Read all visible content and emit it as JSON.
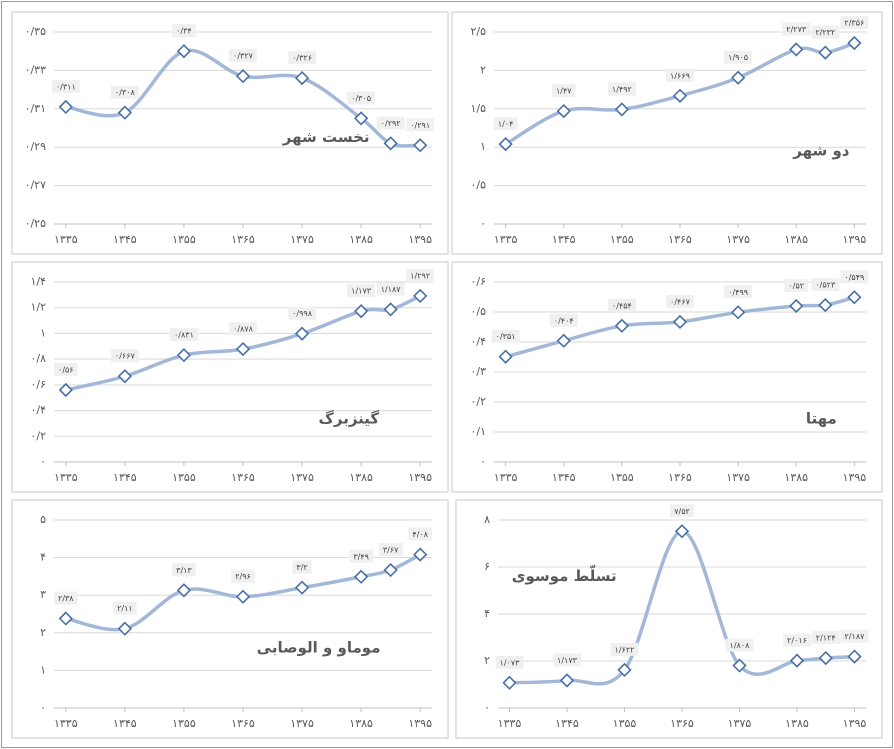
{
  "chart_data": [
    {
      "type": "line",
      "title": "نخست شهر",
      "x": [
        1335,
        1345,
        1355,
        1365,
        1375,
        1385,
        1390,
        1395
      ],
      "values": [
        0.311,
        0.308,
        0.34,
        0.327,
        0.326,
        0.305,
        0.292,
        0.291
      ],
      "value_labels": [
        "۰/۳۱۱",
        "۰/۳۰۸",
        "۰/۳۴",
        "۰/۳۲۷",
        "۰/۳۲۶",
        "۰/۳۰۵",
        "۰/۲۹۲",
        "۰/۲۹۱"
      ],
      "color": "#a3b8d9",
      "marker_color": "#4a6fa5",
      "xlim": [
        1333,
        1397
      ],
      "ylim": [
        0.25,
        0.35
      ],
      "xticks": [
        {
          "value": 1335,
          "label": "۱۳۳۵"
        },
        {
          "value": 1345,
          "label": "۱۳۴۵"
        },
        {
          "value": 1355,
          "label": "۱۳۵۵"
        },
        {
          "value": 1365,
          "label": "۱۳۶۵"
        },
        {
          "value": 1375,
          "label": "۱۳۷۵"
        },
        {
          "value": 1385,
          "label": "۱۳۸۵"
        },
        {
          "value": 1395,
          "label": "۱۳۹۵"
        }
      ],
      "yticks": [
        {
          "value": 0.25,
          "label": "۰/۲۵"
        },
        {
          "value": 0.27,
          "label": "۰/۲۷"
        },
        {
          "value": 0.29,
          "label": "۰/۲۹"
        },
        {
          "value": 0.31,
          "label": "۰/۳۱"
        },
        {
          "value": 0.33,
          "label": "۰/۳۳"
        },
        {
          "value": 0.35,
          "label": "۰/۳۵"
        }
      ],
      "grid": true
    },
    {
      "type": "line",
      "title": "دو شهر",
      "x": [
        1335,
        1345,
        1355,
        1365,
        1375,
        1385,
        1390,
        1395
      ],
      "values": [
        1.04,
        1.47,
        1.492,
        1.669,
        1.905,
        2.273,
        2.232,
        2.356
      ],
      "value_labels": [
        "۱/۰۴",
        "۱/۴۷",
        "۱/۴۹۲",
        "۱/۶۶۹",
        "۱/۹۰۵",
        "۲/۲۷۳",
        "۲/۲۳۲",
        "۲/۳۵۶"
      ],
      "color": "#a3b8d9",
      "marker_color": "#4a6fa5",
      "xlim": [
        1333,
        1397
      ],
      "ylim": [
        0,
        2.5
      ],
      "xticks": [
        {
          "value": 1335,
          "label": "۱۳۳۵"
        },
        {
          "value": 1345,
          "label": "۱۳۴۵"
        },
        {
          "value": 1355,
          "label": "۱۳۵۵"
        },
        {
          "value": 1365,
          "label": "۱۳۶۵"
        },
        {
          "value": 1375,
          "label": "۱۳۷۵"
        },
        {
          "value": 1385,
          "label": "۱۳۸۵"
        },
        {
          "value": 1395,
          "label": "۱۳۹۵"
        }
      ],
      "yticks": [
        {
          "value": 0,
          "label": "۰"
        },
        {
          "value": 0.5,
          "label": "۰/۵"
        },
        {
          "value": 1,
          "label": "۱"
        },
        {
          "value": 1.5,
          "label": "۱/۵"
        },
        {
          "value": 2,
          "label": "۲"
        },
        {
          "value": 2.5,
          "label": "۲/۵"
        }
      ],
      "grid": true
    },
    {
      "type": "line",
      "title": "گینزبرگ",
      "x": [
        1335,
        1345,
        1355,
        1365,
        1375,
        1385,
        1390,
        1395
      ],
      "values": [
        0.56,
        0.667,
        0.831,
        0.878,
        0.998,
        1.173,
        1.187,
        1.292
      ],
      "value_labels": [
        "۰/۵۶",
        "۰/۶۶۷",
        "۰/۸۳۱",
        "۰/۸۷۸",
        "۰/۹۹۸",
        "۱/۱۷۳",
        "۱/۱۸۷",
        "۱/۲۹۲"
      ],
      "color": "#a3b8d9",
      "marker_color": "#4a6fa5",
      "xlim": [
        1333,
        1397
      ],
      "ylim": [
        0,
        1.4
      ],
      "xticks": [
        {
          "value": 1335,
          "label": "۱۳۳۵"
        },
        {
          "value": 1345,
          "label": "۱۳۴۵"
        },
        {
          "value": 1355,
          "label": "۱۳۵۵"
        },
        {
          "value": 1365,
          "label": "۱۳۶۵"
        },
        {
          "value": 1375,
          "label": "۱۳۷۵"
        },
        {
          "value": 1385,
          "label": "۱۳۸۵"
        },
        {
          "value": 1395,
          "label": "۱۳۹۵"
        }
      ],
      "yticks": [
        {
          "value": 0,
          "label": "۰"
        },
        {
          "value": 0.2,
          "label": "۰/۲"
        },
        {
          "value": 0.4,
          "label": "۰/۴"
        },
        {
          "value": 0.6,
          "label": "۰/۶"
        },
        {
          "value": 0.8,
          "label": "۰/۸"
        },
        {
          "value": 1,
          "label": "۱"
        },
        {
          "value": 1.2,
          "label": "۱/۲"
        },
        {
          "value": 1.4,
          "label": "۱/۴"
        }
      ],
      "grid": true
    },
    {
      "type": "line",
      "title": "مهتا",
      "x": [
        1335,
        1345,
        1355,
        1365,
        1375,
        1385,
        1390,
        1395
      ],
      "values": [
        0.351,
        0.404,
        0.454,
        0.467,
        0.499,
        0.52,
        0.523,
        0.549
      ],
      "value_labels": [
        "۰/۳۵۱",
        "۰/۴۰۴",
        "۰/۴۵۴",
        "۰/۴۶۷",
        "۰/۴۹۹",
        "۰/۵۲",
        "۰/۵۲۳",
        "۰/۵۴۹"
      ],
      "color": "#a3b8d9",
      "marker_color": "#4a6fa5",
      "xlim": [
        1333,
        1397
      ],
      "ylim": [
        0,
        0.6
      ],
      "xticks": [
        {
          "value": 1335,
          "label": "۱۳۳۵"
        },
        {
          "value": 1345,
          "label": "۱۳۴۵"
        },
        {
          "value": 1355,
          "label": "۱۳۵۵"
        },
        {
          "value": 1365,
          "label": "۱۳۶۵"
        },
        {
          "value": 1375,
          "label": "۱۳۷۵"
        },
        {
          "value": 1385,
          "label": "۱۳۸۵"
        },
        {
          "value": 1395,
          "label": "۱۳۹۵"
        }
      ],
      "yticks": [
        {
          "value": 0,
          "label": "۰"
        },
        {
          "value": 0.1,
          "label": "۰/۱"
        },
        {
          "value": 0.2,
          "label": "۰/۲"
        },
        {
          "value": 0.3,
          "label": "۰/۳"
        },
        {
          "value": 0.4,
          "label": "۰/۴"
        },
        {
          "value": 0.5,
          "label": "۰/۵"
        },
        {
          "value": 0.6,
          "label": "۰/۶"
        }
      ],
      "grid": true
    },
    {
      "type": "line",
      "title": "موماو و الوصابی",
      "x": [
        1335,
        1345,
        1355,
        1365,
        1375,
        1385,
        1390,
        1395
      ],
      "values": [
        2.38,
        2.11,
        3.13,
        2.96,
        3.2,
        3.49,
        3.67,
        4.08
      ],
      "value_labels": [
        "۲/۳۸",
        "۲/۱۱",
        "۳/۱۳",
        "۲/۹۶",
        "۳/۲",
        "۳/۴۹",
        "۳/۶۷",
        "۴/۰۸"
      ],
      "color": "#a3b8d9",
      "marker_color": "#4a6fa5",
      "xlim": [
        1333,
        1397
      ],
      "ylim": [
        0,
        5
      ],
      "xticks": [
        {
          "value": 1335,
          "label": "۱۳۳۵"
        },
        {
          "value": 1345,
          "label": "۱۳۴۵"
        },
        {
          "value": 1355,
          "label": "۱۳۵۵"
        },
        {
          "value": 1365,
          "label": "۱۳۶۵"
        },
        {
          "value": 1375,
          "label": "۱۳۷۵"
        },
        {
          "value": 1385,
          "label": "۱۳۸۵"
        },
        {
          "value": 1395,
          "label": "۱۳۹۵"
        }
      ],
      "yticks": [
        {
          "value": 0,
          "label": "۰"
        },
        {
          "value": 1,
          "label": "۱"
        },
        {
          "value": 2,
          "label": "۲"
        },
        {
          "value": 3,
          "label": "۳"
        },
        {
          "value": 4,
          "label": "۴"
        },
        {
          "value": 5,
          "label": "۵"
        }
      ],
      "grid": true
    },
    {
      "type": "line",
      "title": "تسلّط موسوی",
      "x": [
        1335,
        1345,
        1355,
        1365,
        1375,
        1385,
        1390,
        1395
      ],
      "values": [
        1.073,
        1.173,
        1.622,
        7.52,
        1.808,
        2.016,
        2.124,
        2.187
      ],
      "value_labels": [
        "۱/۰۷۳",
        "۱/۱۷۳",
        "۱/۶۲۲",
        "۷/۵۲",
        "۱/۸۰۸",
        "۲/۰۱۶",
        "۲/۱۲۴",
        "۲/۱۸۷"
      ],
      "color": "#a3b8d9",
      "marker_color": "#4a6fa5",
      "xlim": [
        1333,
        1397
      ],
      "ylim": [
        0,
        8
      ],
      "xticks": [
        {
          "value": 1335,
          "label": "۱۳۳۵"
        },
        {
          "value": 1345,
          "label": "۱۳۴۵"
        },
        {
          "value": 1355,
          "label": "۱۳۵۵"
        },
        {
          "value": 1365,
          "label": "۱۳۶۵"
        },
        {
          "value": 1375,
          "label": "۱۳۷۵"
        },
        {
          "value": 1385,
          "label": "۱۳۸۵"
        },
        {
          "value": 1395,
          "label": "۱۳۹۵"
        }
      ],
      "yticks": [
        {
          "value": 0,
          "label": "۰"
        },
        {
          "value": 2,
          "label": "۲"
        },
        {
          "value": 4,
          "label": "۴"
        },
        {
          "value": 6,
          "label": "۶"
        },
        {
          "value": 8,
          "label": "۸"
        }
      ],
      "grid": true
    }
  ]
}
